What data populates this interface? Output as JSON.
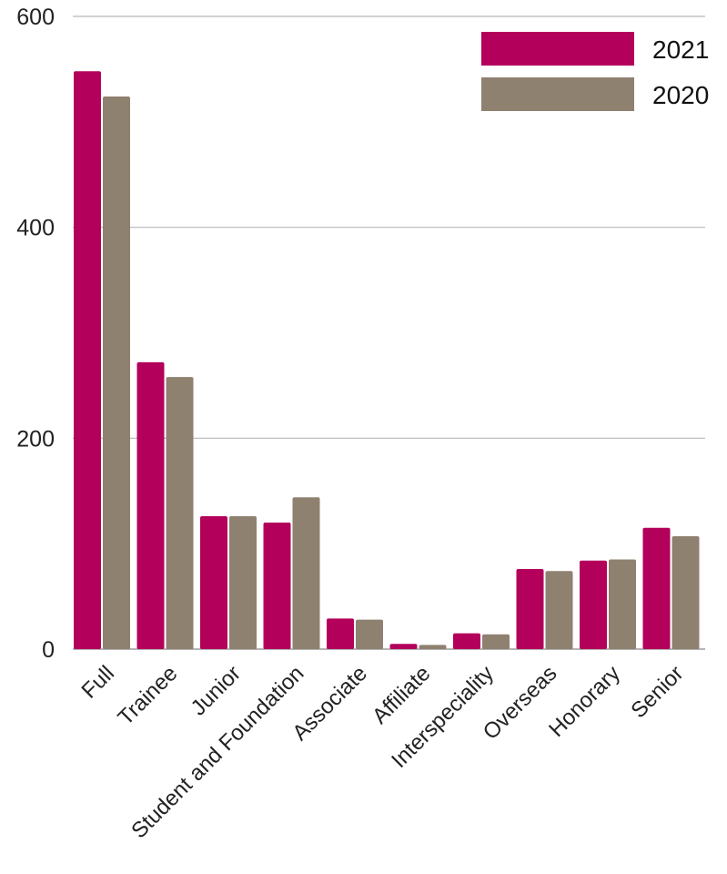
{
  "chart_data": {
    "type": "bar",
    "categories": [
      "Full",
      "Trainee",
      "Junior",
      "Student and Foundation",
      "Associate",
      "Affiliate",
      "Interspeciality",
      "Overseas",
      "Honorary",
      "Senior"
    ],
    "series": [
      {
        "name": "2021",
        "color": "#b3005b",
        "values": [
          548,
          272,
          126,
          120,
          29,
          5,
          15,
          76,
          84,
          115
        ]
      },
      {
        "name": "2020",
        "color": "#8f8170",
        "values": [
          524,
          258,
          126,
          144,
          28,
          4,
          14,
          74,
          85,
          107
        ]
      }
    ],
    "yticks": [
      "0",
      "200",
      "400",
      "600"
    ],
    "ylim": [
      0,
      600
    ],
    "grid": true,
    "legend_position": "top-right"
  }
}
